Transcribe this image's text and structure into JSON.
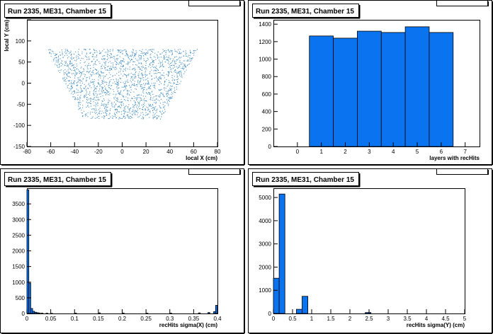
{
  "chart_data": [
    {
      "type": "scatter",
      "title": "Run 2335, ME31, Chamber 15",
      "xlabel": "local X (cm)",
      "ylabel": "local Y (cm)",
      "xlim": [
        -80,
        80
      ],
      "ylim": [
        -150,
        150
      ],
      "xticks": [
        -80,
        -60,
        -40,
        -20,
        0,
        20,
        40,
        60,
        80
      ],
      "yticks": [
        -150,
        -100,
        -50,
        0,
        50,
        100,
        150
      ],
      "yticks_shown": [
        "-150",
        "-100",
        "-50",
        "0",
        "50",
        "100"
      ],
      "region": {
        "top_y": 80,
        "bottom_y": -83,
        "top_half_width": 63,
        "bottom_half_width": 33,
        "gap_x_top": [
          27,
          32
        ],
        "gap_x_bottom": [
          -10,
          -6
        ],
        "vertical_bands": [
          -27,
          -20,
          -8,
          0,
          8,
          19,
          28
        ]
      },
      "marker_color": "#4a90c2"
    },
    {
      "type": "bar",
      "title": "Run 2335, ME31, Chamber 15",
      "xlabel": "layers with recHits",
      "ylabel": "",
      "xlim": [
        -1,
        7.6
      ],
      "ylim": [
        0,
        1450
      ],
      "xticks": [
        0,
        1,
        2,
        3,
        4,
        5,
        6,
        7
      ],
      "yticks": [
        0,
        200,
        400,
        600,
        800,
        1000,
        1200,
        1400
      ],
      "bin_width": 1,
      "bins": [
        1,
        2,
        3,
        4,
        5,
        6
      ],
      "values": [
        1265,
        1240,
        1320,
        1305,
        1370,
        1305
      ],
      "fill": "#0a73f0"
    },
    {
      "type": "bar",
      "title": "Run 2335, ME31, Chamber 15",
      "xlabel": "recHits sigma(X) (cm)",
      "ylabel": "",
      "xlim": [
        0,
        0.4
      ],
      "ylim": [
        0,
        4000
      ],
      "xticks": [
        0,
        0.05,
        0.1,
        0.15,
        0.2,
        0.25,
        0.3,
        0.35,
        0.4
      ],
      "xtick_labels": [
        "0",
        "0.05",
        "0.1",
        "0.15",
        "0.2",
        "0.25",
        "0.3",
        "0.35",
        "0.4"
      ],
      "yticks": [
        0,
        500,
        1000,
        1500,
        2000,
        2500,
        3000,
        3500
      ],
      "bin_width": 0.004,
      "bin_starts": [
        0,
        0.004,
        0.008,
        0.012,
        0.016,
        0.02,
        0.024,
        0.03,
        0.04,
        0.05,
        0.1,
        0.15,
        0.2,
        0.25,
        0.3,
        0.36,
        0.38,
        0.392,
        0.396
      ],
      "values": [
        3950,
        970,
        160,
        70,
        40,
        25,
        15,
        10,
        8,
        5,
        12,
        20,
        15,
        10,
        12,
        18,
        30,
        60,
        260
      ],
      "fill": "#0a73f0"
    },
    {
      "type": "bar",
      "title": "Run 2335, ME31, Chamber 15",
      "xlabel": "recHits sigma(Y) (cm)",
      "ylabel": "",
      "xlim": [
        0,
        5
      ],
      "ylim": [
        0,
        5400
      ],
      "xticks": [
        0,
        0.5,
        1,
        1.5,
        2,
        2.5,
        3,
        3.5,
        4,
        4.5,
        5
      ],
      "xtick_labels": [
        "0",
        "0.5",
        "1",
        "1.5",
        "2",
        "2.5",
        "3",
        "3.5",
        "4",
        "4.5",
        "5"
      ],
      "yticks": [
        0,
        1000,
        2000,
        3000,
        4000,
        5000
      ],
      "bin_width": 0.15,
      "bin_starts": [
        0,
        0.15,
        0.3,
        0.45,
        0.6,
        0.75,
        0.9,
        2.4
      ],
      "values": [
        1520,
        5150,
        0,
        0,
        180,
        740,
        0,
        40
      ],
      "fill": "#0a73f0"
    }
  ]
}
